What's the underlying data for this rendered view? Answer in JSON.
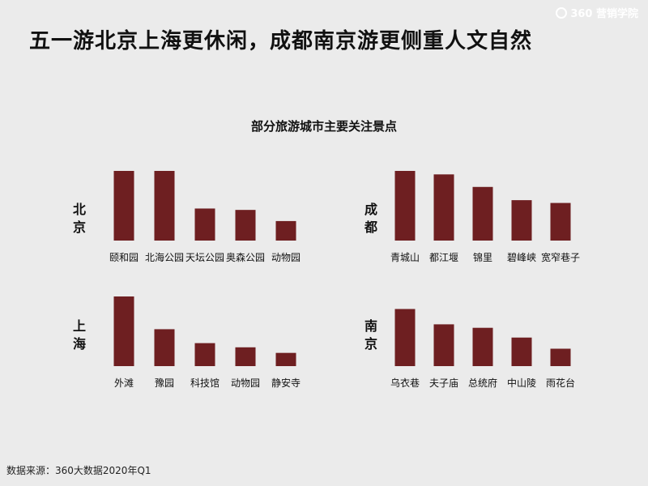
{
  "header": {
    "title": "五一游北京上海更休闲，成都南京游更侧重人文自然",
    "logo_text": "360 营销学院"
  },
  "subtitle": "部分旅游城市主要关注景点",
  "source": "数据来源：360大数据2020年Q1",
  "colors": {
    "bar": "#6e1f21",
    "background": "#ebebeb"
  },
  "chart_data": [
    {
      "type": "bar",
      "city": "北京",
      "categories": [
        "颐和园",
        "北海公园",
        "天坛公园",
        "奥森公园",
        "动物园"
      ],
      "values": [
        100,
        100,
        46,
        44,
        28
      ]
    },
    {
      "type": "bar",
      "city": "成都",
      "categories": [
        "青城山",
        "都江堰",
        "锦里",
        "碧峰峡",
        "宽窄巷子"
      ],
      "values": [
        100,
        95,
        77,
        58,
        54
      ]
    },
    {
      "type": "bar",
      "city": "上海",
      "categories": [
        "外滩",
        "豫园",
        "科技馆",
        "动物园",
        "静安寺"
      ],
      "values": [
        100,
        53,
        33,
        27,
        19
      ]
    },
    {
      "type": "bar",
      "city": "南京",
      "categories": [
        "乌衣巷",
        "夫子庙",
        "总统府",
        "中山陵",
        "雨花台"
      ],
      "values": [
        82,
        60,
        55,
        41,
        25
      ]
    }
  ]
}
